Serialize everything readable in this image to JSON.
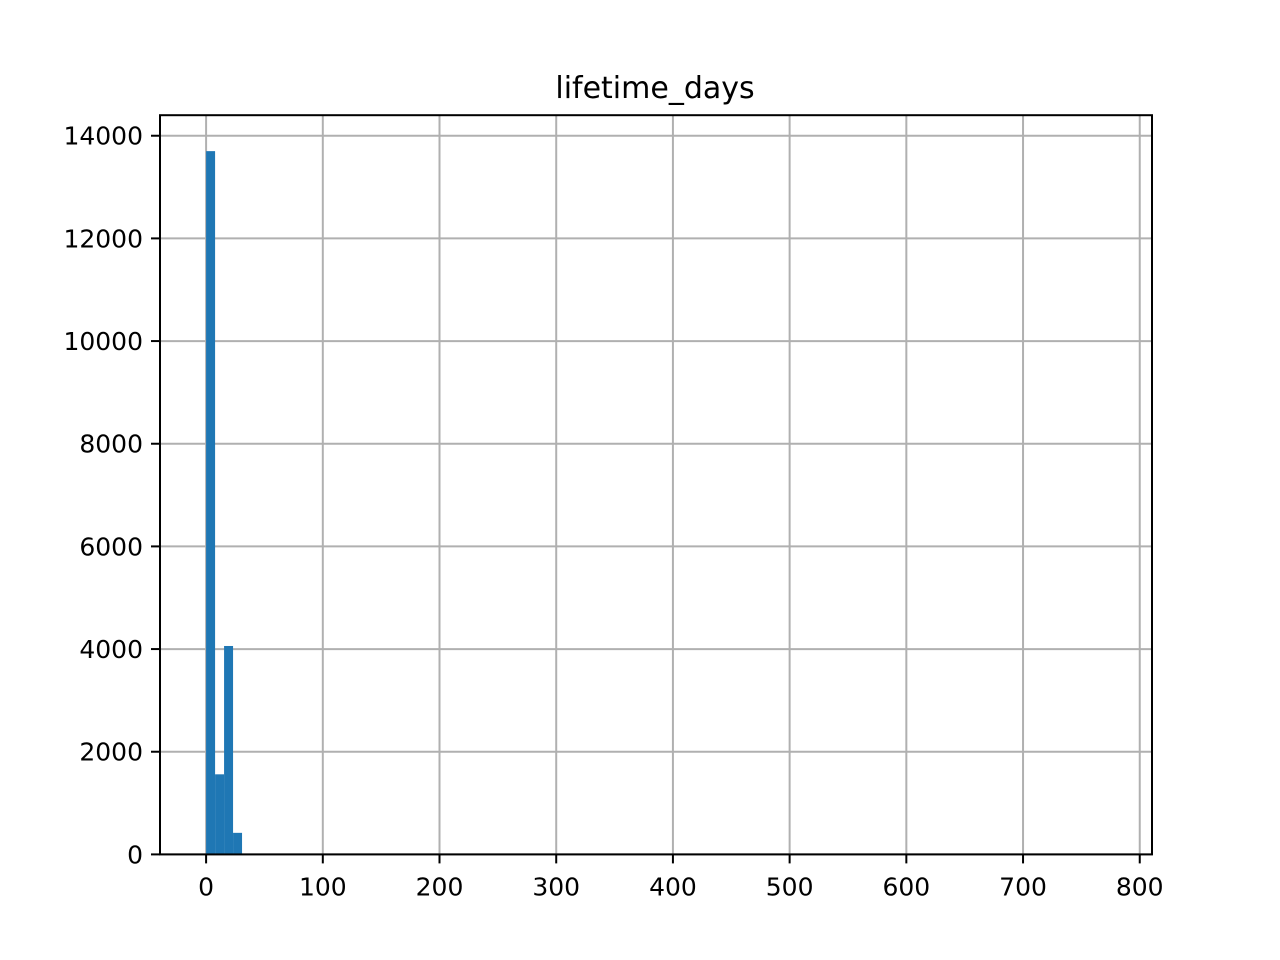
{
  "chart_data": {
    "type": "bar",
    "title": "lifetime_days",
    "xlabel": "",
    "ylabel": "",
    "xlim": [
      -39.5,
      810.5
    ],
    "ylim": [
      0,
      14400
    ],
    "x_ticks": [
      0,
      100,
      200,
      300,
      400,
      500,
      600,
      700,
      800
    ],
    "y_ticks": [
      0,
      2000,
      4000,
      6000,
      8000,
      10000,
      12000,
      14000
    ],
    "grid": true,
    "bar_color": "#1f77b4",
    "bin_width": 7.7,
    "bins": [
      {
        "x0": 0.0,
        "x1": 7.7,
        "count": 13700
      },
      {
        "x0": 7.7,
        "x1": 15.4,
        "count": 1560
      },
      {
        "x0": 15.4,
        "x1": 23.1,
        "count": 4060
      },
      {
        "x0": 23.1,
        "x1": 30.8,
        "count": 420
      },
      {
        "x0": 30.8,
        "x1": 38.5,
        "count": 0
      }
    ]
  }
}
